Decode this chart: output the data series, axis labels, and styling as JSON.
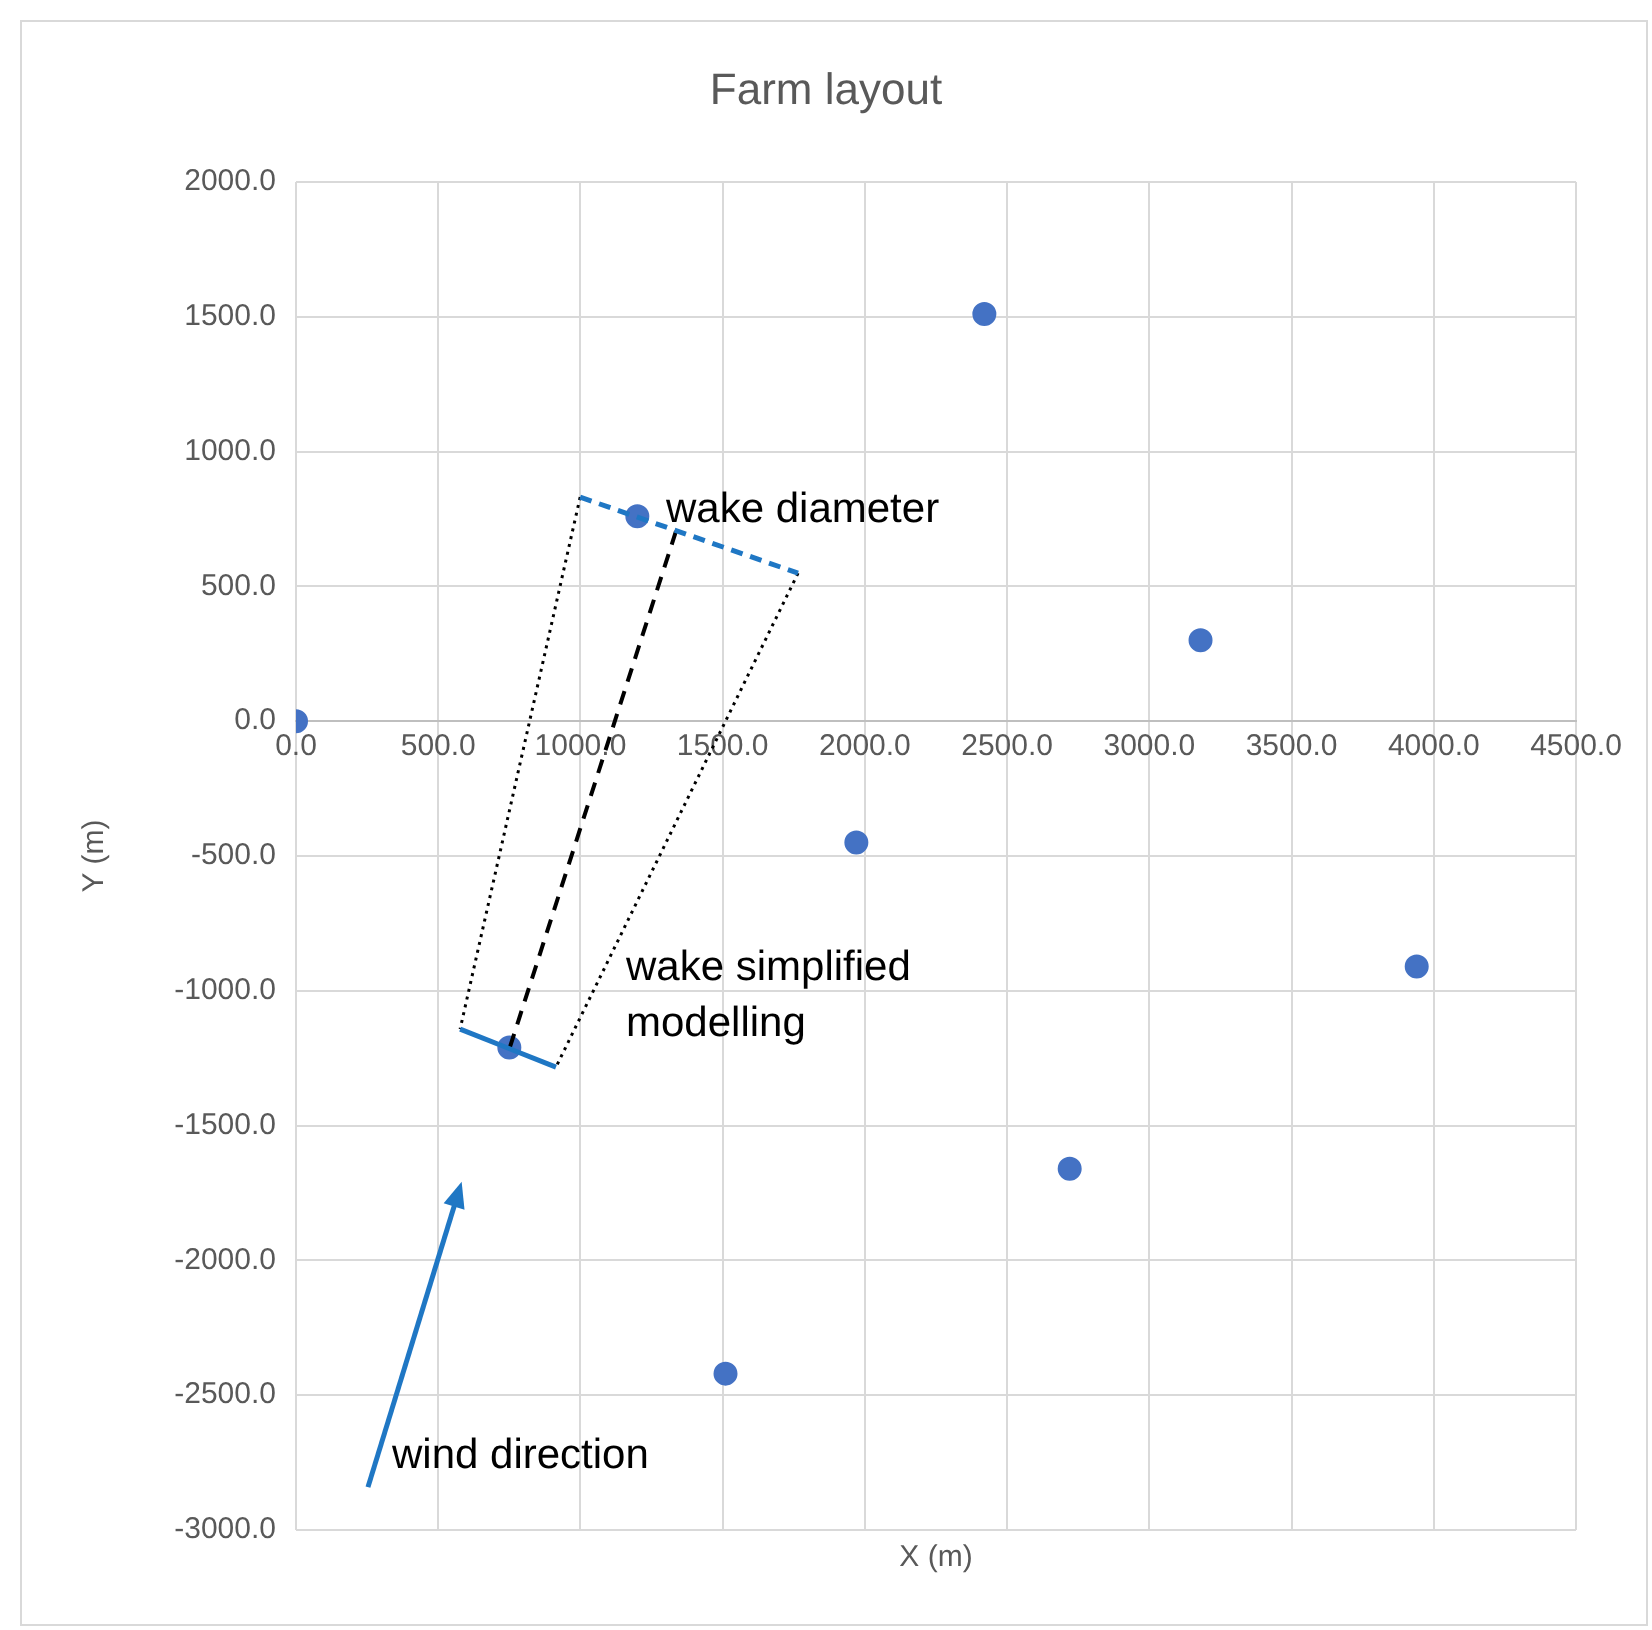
{
  "chart_data": {
    "type": "scatter",
    "title": "Farm layout",
    "xlabel": "X (m)",
    "ylabel": "Y (m)",
    "x": [
      0,
      1200,
      2420,
      3180,
      1970,
      3940,
      750,
      2720,
      1510
    ],
    "values": [
      0,
      760,
      1510,
      300,
      -450,
      -910,
      -1210,
      -1660,
      -2420
    ],
    "color": "#4472c4",
    "marker": "circle",
    "xlim": [
      0,
      4500
    ],
    "xticks": [
      {
        "value": 0,
        "label": "0.0"
      },
      {
        "value": 500,
        "label": "500.0"
      },
      {
        "value": 1000,
        "label": "1000.0"
      },
      {
        "value": 1500,
        "label": "1500.0"
      },
      {
        "value": 2000,
        "label": "2000.0"
      },
      {
        "value": 2500,
        "label": "2500.0"
      },
      {
        "value": 3000,
        "label": "3000.0"
      },
      {
        "value": 3500,
        "label": "3500.0"
      },
      {
        "value": 4000,
        "label": "4000.0"
      },
      {
        "value": 4500,
        "label": "4500.0"
      }
    ],
    "ylim": [
      -3000,
      2000
    ],
    "yticks": [
      {
        "value": -3000,
        "label": "-3000.0"
      },
      {
        "value": -2500,
        "label": "-2500.0"
      },
      {
        "value": -2000,
        "label": "-2000.0"
      },
      {
        "value": -1500,
        "label": "-1500.0"
      },
      {
        "value": -1000,
        "label": "-1000.0"
      },
      {
        "value": -500,
        "label": "-500.0"
      },
      {
        "value": 0,
        "label": "0.0"
      },
      {
        "value": 500,
        "label": "500.0"
      },
      {
        "value": 1000,
        "label": "1000.0"
      },
      {
        "value": 1500,
        "label": "1500.0"
      },
      {
        "value": 2000,
        "label": "2000.0"
      }
    ],
    "grid": true,
    "legend": false,
    "annotations": [
      "wake diameter",
      "wake simplified modelling",
      "wind direction"
    ]
  }
}
